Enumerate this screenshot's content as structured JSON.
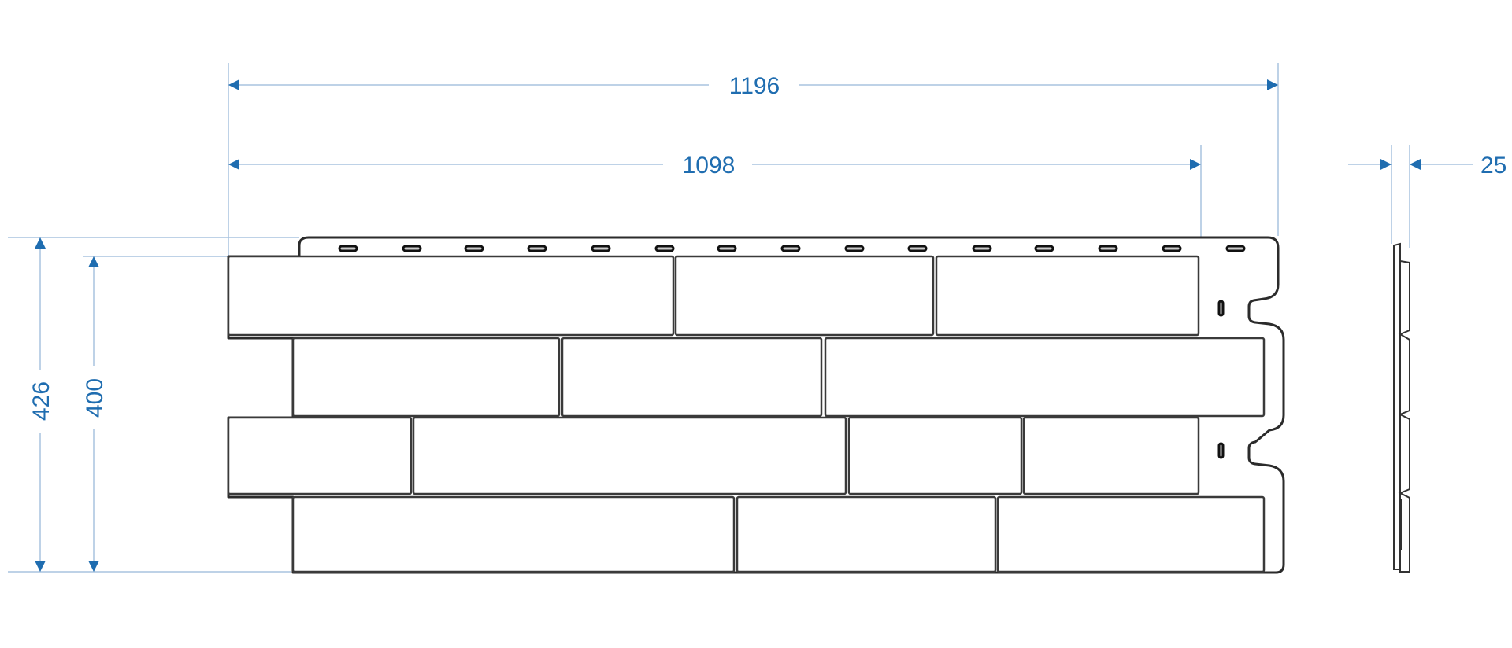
{
  "drawing": {
    "dimensions": {
      "overall_width": "1196",
      "effective_width": "1098",
      "overall_height": "426",
      "effective_height": "400",
      "thickness": "25"
    },
    "colors": {
      "dimension_text": "#1f6db0",
      "dimension_line": "#a9c3df",
      "outline": "#2b2b2b"
    }
  }
}
